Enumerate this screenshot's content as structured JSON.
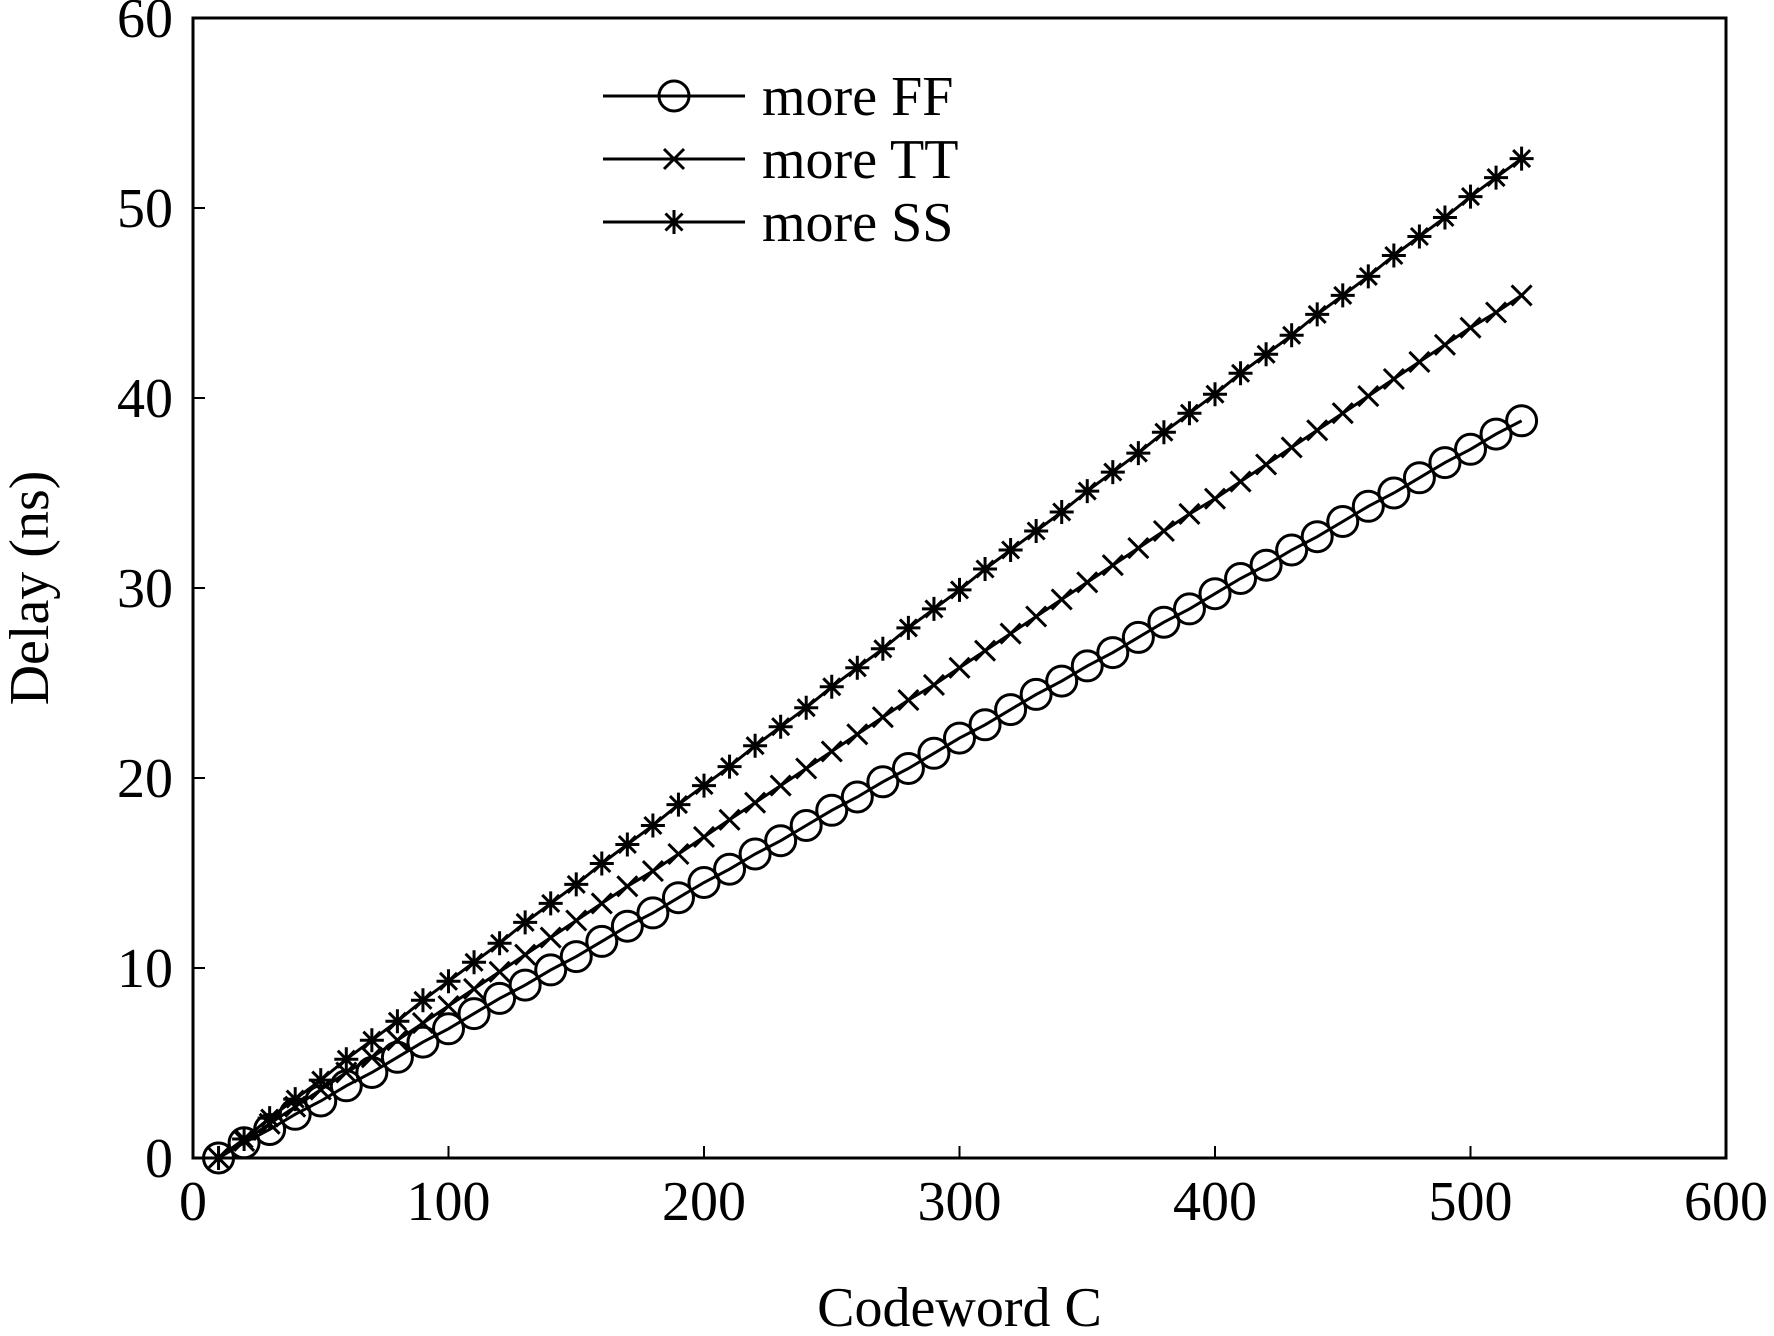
{
  "chart_data": {
    "type": "line",
    "title": "",
    "xlabel": "Codeword C",
    "ylabel": "Delay (ns)",
    "xlim": [
      0,
      600
    ],
    "ylim": [
      0,
      60
    ],
    "xticks": [
      0,
      100,
      200,
      300,
      400,
      500,
      600
    ],
    "yticks": [
      0,
      10,
      20,
      30,
      40,
      50,
      60
    ],
    "xtick_labels": [
      "0",
      "100",
      "200",
      "300",
      "400",
      "500",
      "600"
    ],
    "ytick_labels": [
      "0",
      "10",
      "20",
      "30",
      "40",
      "50",
      "60"
    ],
    "grid": false,
    "legend_position": "top-center",
    "line_color": "#000000",
    "x": [
      10,
      20,
      30,
      40,
      50,
      60,
      70,
      80,
      90,
      100,
      110,
      120,
      130,
      140,
      150,
      160,
      170,
      180,
      190,
      200,
      210,
      220,
      230,
      240,
      250,
      260,
      270,
      280,
      290,
      300,
      310,
      320,
      330,
      340,
      350,
      360,
      370,
      380,
      390,
      400,
      410,
      420,
      430,
      440,
      450,
      460,
      470,
      480,
      490,
      500,
      510,
      520
    ],
    "series": [
      {
        "name": "more FF",
        "marker": "circle",
        "values": [
          0,
          0.8,
          1.5,
          2.3,
          3.0,
          3.8,
          4.5,
          5.3,
          6.1,
          6.8,
          7.6,
          8.4,
          9.1,
          9.9,
          10.6,
          11.4,
          12.2,
          12.9,
          13.7,
          14.5,
          15.2,
          16.0,
          16.7,
          17.5,
          18.3,
          19.0,
          19.8,
          20.5,
          21.3,
          22.1,
          22.8,
          23.6,
          24.4,
          25.1,
          25.9,
          26.6,
          27.4,
          28.2,
          28.9,
          29.7,
          30.5,
          31.2,
          32.0,
          32.7,
          33.5,
          34.3,
          35.0,
          35.8,
          36.6,
          37.3,
          38.1,
          38.8
        ]
      },
      {
        "name": "more TT",
        "marker": "x",
        "values": [
          0,
          0.9,
          1.8,
          2.7,
          3.6,
          4.5,
          5.3,
          6.2,
          7.1,
          8.0,
          8.9,
          9.8,
          10.7,
          11.6,
          12.5,
          13.4,
          14.3,
          15.1,
          16.0,
          16.9,
          17.8,
          18.7,
          19.6,
          20.5,
          21.4,
          22.3,
          23.2,
          24.1,
          24.9,
          25.8,
          26.7,
          27.6,
          28.5,
          29.4,
          30.3,
          31.2,
          32.1,
          33.0,
          33.9,
          34.7,
          35.6,
          36.5,
          37.4,
          38.3,
          39.2,
          40.1,
          41.0,
          41.9,
          42.8,
          43.7,
          44.5,
          45.4
        ]
      },
      {
        "name": "more SS",
        "marker": "asterisk",
        "values": [
          0,
          1.0,
          2.1,
          3.1,
          4.1,
          5.2,
          6.2,
          7.2,
          8.3,
          9.3,
          10.3,
          11.3,
          12.4,
          13.4,
          14.4,
          15.5,
          16.5,
          17.5,
          18.6,
          19.6,
          20.6,
          21.7,
          22.7,
          23.7,
          24.8,
          25.8,
          26.8,
          27.9,
          28.9,
          29.9,
          31.0,
          32.0,
          33.0,
          34.0,
          35.1,
          36.1,
          37.1,
          38.2,
          39.2,
          40.2,
          41.3,
          42.3,
          43.3,
          44.4,
          45.4,
          46.4,
          47.5,
          48.5,
          49.5,
          50.6,
          51.6,
          52.6
        ]
      }
    ]
  }
}
